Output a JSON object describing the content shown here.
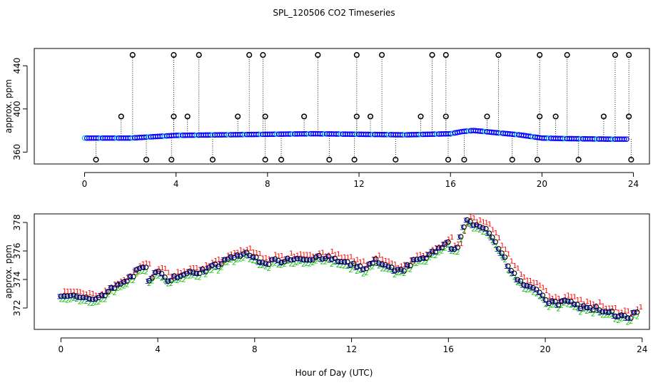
{
  "title": "SPL_120506  CO2 Timeseries",
  "xlabel": "Hour of Day (UTC)",
  "chart_data": [
    {
      "type": "scatter",
      "title": "",
      "xlabel": "",
      "ylabel": "approx. ppm",
      "xlim": [
        -2.2,
        24.7
      ],
      "ylim": [
        349,
        456
      ],
      "xticks": [
        0,
        4,
        8,
        12,
        16,
        20,
        24
      ],
      "yticks": [
        360,
        400,
        440
      ],
      "colors": {
        "main": "#0000ff",
        "alt": "#00c8c8",
        "outlier": "#000000"
      },
      "baseline": [
        [
          0,
          373
        ],
        [
          2,
          373
        ],
        [
          4,
          375.5
        ],
        [
          6,
          376
        ],
        [
          8,
          376.5
        ],
        [
          10,
          377
        ],
        [
          12,
          376.5
        ],
        [
          14,
          376
        ],
        [
          16,
          377
        ],
        [
          16.5,
          379
        ],
        [
          17,
          380
        ],
        [
          18,
          378
        ],
        [
          19,
          376
        ],
        [
          20,
          373
        ],
        [
          21,
          372.5
        ],
        [
          23,
          372
        ],
        [
          23.8,
          372
        ]
      ],
      "low_spikes": [
        0.5,
        2.7,
        3.8,
        5.6,
        7.9,
        8.6,
        10.7,
        11.8,
        13.6,
        15.9,
        16.6,
        18.7,
        19.8,
        21.6,
        23.9
      ],
      "high_spikes": [
        2.1,
        3.9,
        5.0,
        7.2,
        7.8,
        10.2,
        11.9,
        13.0,
        15.2,
        15.8,
        18.1,
        19.9,
        21.1,
        23.2,
        23.8
      ],
      "mid_points": [
        1.6,
        3.9,
        4.5,
        6.7,
        7.9,
        9.6,
        11.9,
        12.5,
        14.7,
        15.8,
        17.6,
        19.9,
        20.6,
        22.7,
        23.8
      ],
      "high_value": 450,
      "low_value": 353,
      "mid_value": 393
    },
    {
      "type": "line",
      "title": "",
      "xlabel": "",
      "ylabel": "approx. ppm",
      "xlim": [
        -1.1,
        24.3
      ],
      "ylim": [
        370.5,
        378.6
      ],
      "xticks": [
        0,
        4,
        8,
        12,
        16,
        20,
        24
      ],
      "yticks": [
        372,
        374,
        376,
        378
      ],
      "series": [
        {
          "name": "1",
          "color": "#ff0000"
        },
        {
          "name": "2",
          "color": "#00c000"
        },
        {
          "name": "3",
          "color": "#0000ff"
        }
      ],
      "points": [
        [
          0,
          373
        ],
        [
          0.5,
          372.8
        ],
        [
          1,
          372.6
        ],
        [
          1.5,
          372.7
        ],
        [
          2,
          373.2
        ],
        [
          2.5,
          373.8
        ],
        [
          3,
          374.2
        ],
        [
          3.3,
          375
        ],
        [
          3.5,
          374.8
        ],
        [
          3.6,
          374
        ],
        [
          4,
          374.6
        ],
        [
          4.3,
          374
        ],
        [
          5,
          374.3
        ],
        [
          5.5,
          374.5
        ],
        [
          6,
          374.7
        ],
        [
          6.5,
          375
        ],
        [
          7,
          375.5
        ],
        [
          7.5,
          375.8
        ],
        [
          7.8,
          375.7
        ],
        [
          8,
          375.5
        ],
        [
          8.5,
          375.2
        ],
        [
          9,
          375.3
        ],
        [
          9.5,
          375.5
        ],
        [
          10,
          375.5
        ],
        [
          10.5,
          375.5
        ],
        [
          11,
          375.5
        ],
        [
          11.5,
          375.3
        ],
        [
          12,
          375
        ],
        [
          12.5,
          374.8
        ],
        [
          13,
          375.3
        ],
        [
          13.5,
          374.8
        ],
        [
          14,
          374.5
        ],
        [
          14.5,
          375.2
        ],
        [
          15,
          375.5
        ],
        [
          15.5,
          376
        ],
        [
          16,
          376.5
        ],
        [
          16.2,
          375.8
        ],
        [
          16.5,
          376.8
        ],
        [
          16.7,
          378.2
        ],
        [
          17,
          378
        ],
        [
          17.5,
          377.5
        ],
        [
          18,
          376.5
        ],
        [
          18.5,
          375
        ],
        [
          19,
          373.8
        ],
        [
          19.5,
          373.5
        ],
        [
          20,
          372.5
        ],
        [
          20.5,
          372.3
        ],
        [
          21,
          372.5
        ],
        [
          21.5,
          372
        ],
        [
          22,
          372
        ],
        [
          22.5,
          371.8
        ],
        [
          23,
          371.5
        ],
        [
          23.5,
          371.2
        ],
        [
          23.8,
          371.8
        ]
      ]
    }
  ]
}
